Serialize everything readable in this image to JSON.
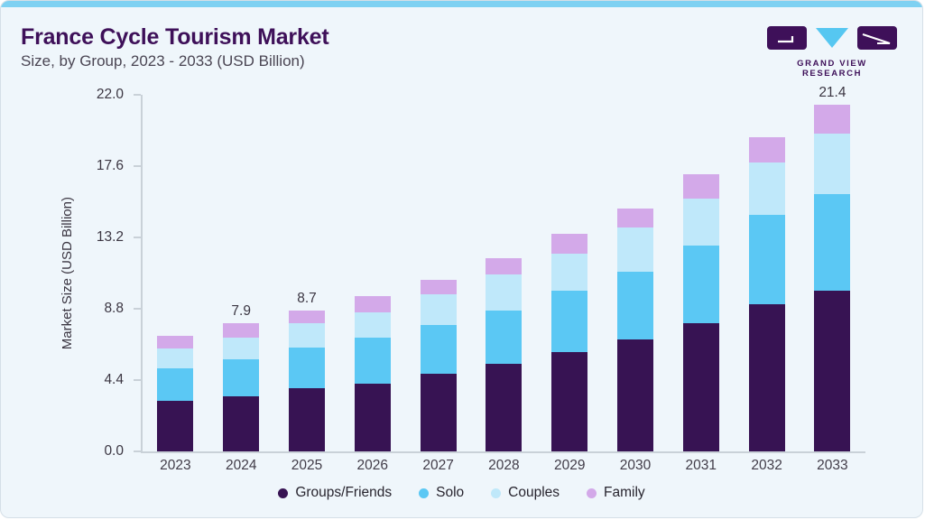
{
  "header": {
    "title": "France Cycle Tourism Market",
    "subtitle": "Size, by Group, 2023 - 2033 (USD Billion)"
  },
  "logo": {
    "text": "GRAND VIEW RESEARCH",
    "brand_purple": "#3e1059",
    "brand_blue": "#56c7f1"
  },
  "chart_data": {
    "type": "bar",
    "stacked": true,
    "title": "France Cycle Tourism Market Size, by Group, 2023 - 2033 (USD Billion)",
    "xlabel": "",
    "ylabel": "Market Size (USD Billion)",
    "ylim": [
      0,
      22
    ],
    "yticks": [
      "0.0",
      "4.4",
      "8.8",
      "13.2",
      "17.6",
      "22.0"
    ],
    "grid": false,
    "legend_position": "bottom",
    "categories": [
      "2023",
      "2024",
      "2025",
      "2026",
      "2027",
      "2028",
      "2029",
      "2030",
      "2031",
      "2032",
      "2033"
    ],
    "series": [
      {
        "name": "Groups/Friends",
        "color": "#371353",
        "values": [
          3.1,
          3.4,
          3.9,
          4.2,
          4.8,
          5.4,
          6.1,
          6.9,
          7.9,
          9.1,
          9.9
        ]
      },
      {
        "name": "Solo",
        "color": "#5bc8f4",
        "values": [
          2.0,
          2.3,
          2.5,
          2.8,
          3.0,
          3.3,
          3.8,
          4.2,
          4.8,
          5.5,
          6.0
        ]
      },
      {
        "name": "Couples",
        "color": "#bfe8fa",
        "values": [
          1.25,
          1.3,
          1.5,
          1.6,
          1.9,
          2.2,
          2.3,
          2.7,
          2.9,
          3.2,
          3.7
        ]
      },
      {
        "name": "Family",
        "color": "#d3a9e9",
        "values": [
          0.8,
          0.9,
          0.8,
          1.0,
          0.9,
          1.0,
          1.2,
          1.2,
          1.5,
          1.6,
          1.8
        ]
      }
    ],
    "totals": [
      7.15,
      7.9,
      8.7,
      9.6,
      10.6,
      11.9,
      13.4,
      15.0,
      17.1,
      19.4,
      21.4
    ],
    "bar_labels": {
      "2024": "7.9",
      "2025": "8.7",
      "2033": "21.4"
    }
  }
}
